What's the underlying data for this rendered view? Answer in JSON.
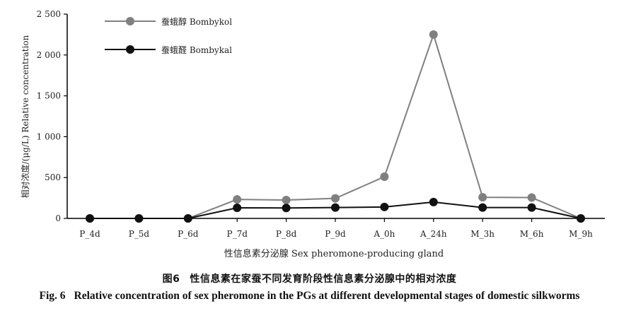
{
  "chart_data": {
    "type": "line",
    "categories": [
      "P_4d",
      "P_5d",
      "P_6d",
      "P_7d",
      "P_8d",
      "P_9d",
      "A_0h",
      "A_24h",
      "M_3h",
      "M_6h",
      "M_9h"
    ],
    "series": [
      {
        "name": "蚕蛾醇 Bombykol",
        "color": "#808080",
        "values": [
          0,
          0,
          0,
          232,
          225,
          245,
          510,
          2250,
          258,
          255,
          0
        ]
      },
      {
        "name": "蚕蛾醛 Bombykal",
        "color": "#111111",
        "values": [
          0,
          0,
          0,
          130,
          128,
          133,
          140,
          200,
          133,
          133,
          0
        ]
      }
    ],
    "ylabel": "相对浓度/(μg/L) Relative concentration",
    "xlabel": "性信息素分泌腺 Sex pheromone-producing gland",
    "ylim": [
      0,
      2500
    ],
    "yticks": [
      0,
      500,
      1000,
      1500,
      2000,
      2500
    ],
    "ytick_labels": [
      "0",
      "500",
      "1 000",
      "1 500",
      "2 000",
      "2 500"
    ],
    "grid": false,
    "legend_position": "top-left"
  },
  "caption": {
    "cn_label": "图6",
    "cn_text": "性信息素在家蚕不同发育阶段性信息素分泌腺中的相对浓度",
    "en_label": "Fig. 6",
    "en_text": "Relative concentration of sex pheromone in the PGs at different developmental stages of domestic silkworms"
  }
}
